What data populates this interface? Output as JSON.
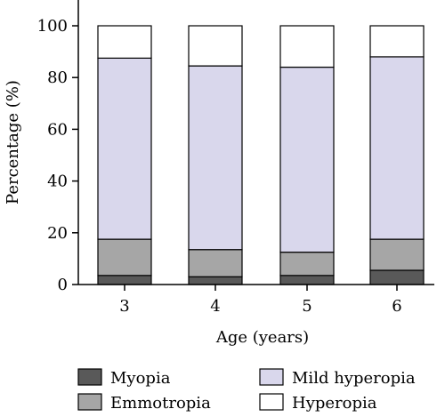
{
  "chart_data": {
    "type": "bar",
    "stacked": true,
    "categories": [
      "3",
      "4",
      "5",
      "6"
    ],
    "series": [
      {
        "name": "Myopia",
        "color": "#595959",
        "values": [
          3.5,
          3.0,
          3.5,
          5.5
        ]
      },
      {
        "name": "Emmotropia",
        "color": "#a6a6a6",
        "values": [
          14.0,
          10.5,
          9.0,
          12.0
        ]
      },
      {
        "name": "Mild hyperopia",
        "color": "#d9d7ec",
        "values": [
          70.0,
          71.0,
          71.5,
          70.5
        ]
      },
      {
        "name": "Hyperopia",
        "color": "#ffffff",
        "values": [
          12.5,
          15.5,
          16.0,
          12.0
        ]
      }
    ],
    "xlabel": "Age (years)",
    "ylabel": "Percentage (%)",
    "ylim": [
      0,
      100
    ],
    "yticks": [
      0,
      20,
      40,
      60,
      80,
      100
    ],
    "grid": false,
    "legend_position": "bottom"
  }
}
